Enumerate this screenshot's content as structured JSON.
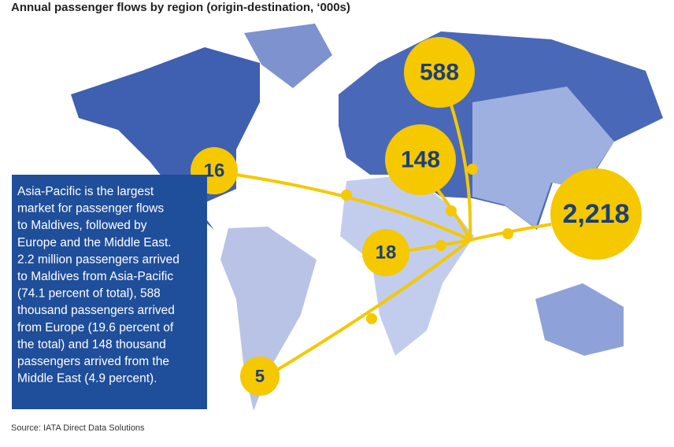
{
  "title": "Annual passenger flows by region (origin-destination, ‘000s)",
  "flows": [
    {
      "label": "588"
    },
    {
      "label": "148"
    },
    {
      "label": "16"
    },
    {
      "label": "2,218"
    },
    {
      "label": "18"
    },
    {
      "label": "5"
    }
  ],
  "note": [
    "Asia-Pacific is the largest",
    "market for passenger flows",
    "to Maldives, followed by",
    "Europe and the Middle East.",
    "2.2 million passengers arrived",
    "to Maldives from Asia-Pacific",
    "(74.1 percent of total), 588",
    "thousand passengers arrived",
    "from Europe (19.6 percent of",
    "the total) and 148 thousand",
    "passengers arrived from the",
    "Middle East (4.9 percent)."
  ],
  "source": "Source: IATA Direct Data Solutions"
}
